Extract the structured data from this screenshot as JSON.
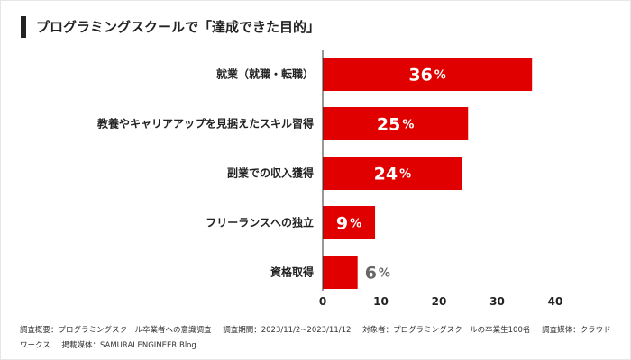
{
  "chart_data": {
    "type": "bar",
    "orientation": "horizontal",
    "title": "プログラミングスクールで「達成できた目的」",
    "categories": [
      "就業（就職・転職）",
      "教養やキャリアアップを見据えたスキル習得",
      "副業での収入獲得",
      "フリーランスへの独立",
      "資格取得"
    ],
    "values": [
      36,
      25,
      24,
      9,
      6
    ],
    "unit": "%",
    "xlim": [
      0,
      40
    ],
    "xticks": [
      0,
      10,
      20,
      30,
      40
    ],
    "grid": false,
    "bar_color": "#e00000",
    "label_color_inside": "#ffffff",
    "label_color_outside": "#666666"
  },
  "footnote": {
    "survey": "調査概要：プログラミングスクール卒業者への意識調査",
    "period": "調査期間：2023/11/2~2023/11/12",
    "target": "対象者：プログラミングスクールの卒業生100名",
    "medium": "調査媒体：クラウドワークス",
    "publisher": "掲載媒体：SAMURAI ENGINEER Blog"
  }
}
